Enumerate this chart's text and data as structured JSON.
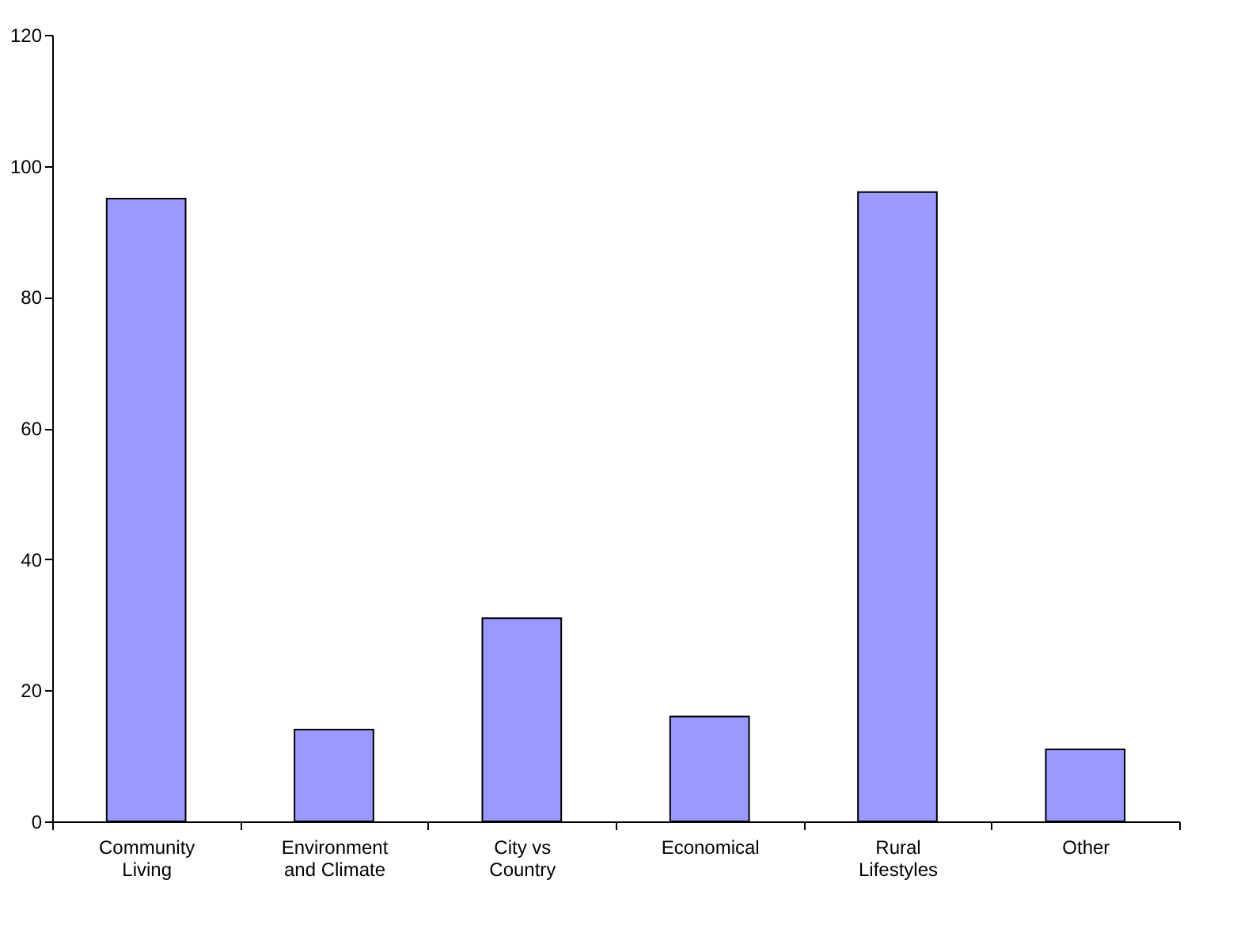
{
  "chart_data": {
    "type": "bar",
    "categories": [
      "Community Living",
      "Environment and Climate",
      "City vs Country",
      "Economical",
      "Rural Lifestyles",
      "Other"
    ],
    "values": [
      95,
      14,
      31,
      16,
      96,
      11
    ],
    "color": "#9999ff",
    "ylim": [
      0,
      120
    ],
    "yticks": [
      0,
      20,
      40,
      60,
      80,
      100,
      120
    ],
    "grid": false
  }
}
